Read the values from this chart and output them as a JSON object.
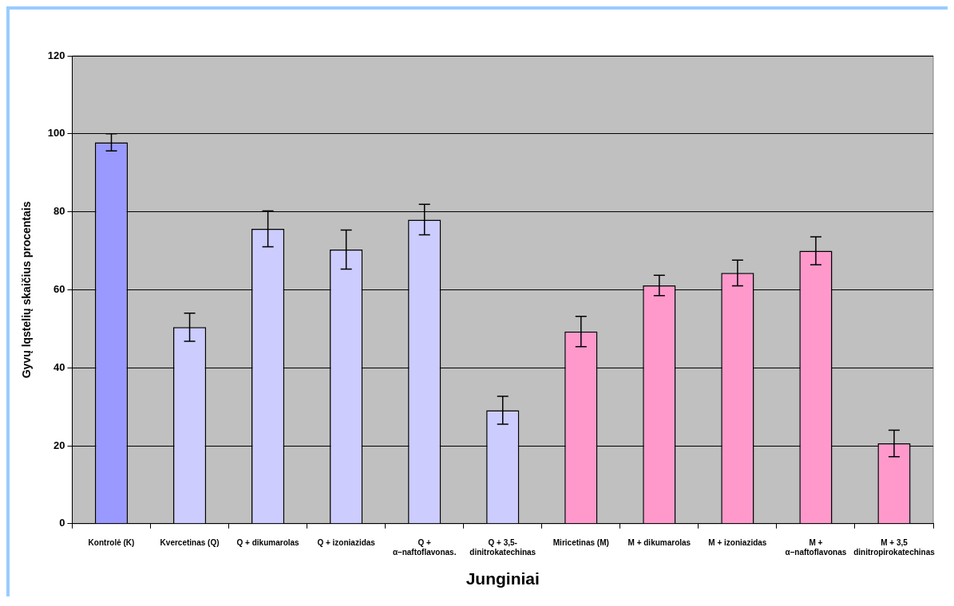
{
  "chart_data": {
    "type": "bar",
    "xlabel": "Junginiai",
    "ylabel": "Gyvų lqstelių skaičius procentais",
    "categories": [
      "Kontrolė (K)",
      "Kvercetinas (Q)",
      "Q + dikumarolas",
      "Q + izoniazidas",
      "Q + α–naftoflavonas.",
      "Q + 3,5-\ndinitrokatechinas",
      "Miricetinas (M)",
      "M + dikumarolas",
      "M + izoniazidas",
      "M + α–naftoflavonas",
      "M + 3,5\ndinitropirokatechinas"
    ],
    "values": [
      97.8,
      50.4,
      75.6,
      70.3,
      78.0,
      29.1,
      49.3,
      61.1,
      64.3,
      70.0,
      20.6
    ],
    "errors": [
      2.2,
      3.6,
      4.6,
      5.0,
      3.9,
      3.6,
      3.9,
      2.6,
      3.3,
      3.6,
      3.4
    ],
    "colors": [
      "#9999ff",
      "#ccccff",
      "#ccccff",
      "#ccccff",
      "#ccccff",
      "#ccccff",
      "#ff99cc",
      "#ff99cc",
      "#ff99cc",
      "#ff99cc",
      "#ff99cc"
    ],
    "ylim": [
      0,
      120
    ],
    "yticks": [
      0,
      20,
      40,
      60,
      80,
      100,
      120
    ],
    "grid": "y",
    "legend": false
  }
}
